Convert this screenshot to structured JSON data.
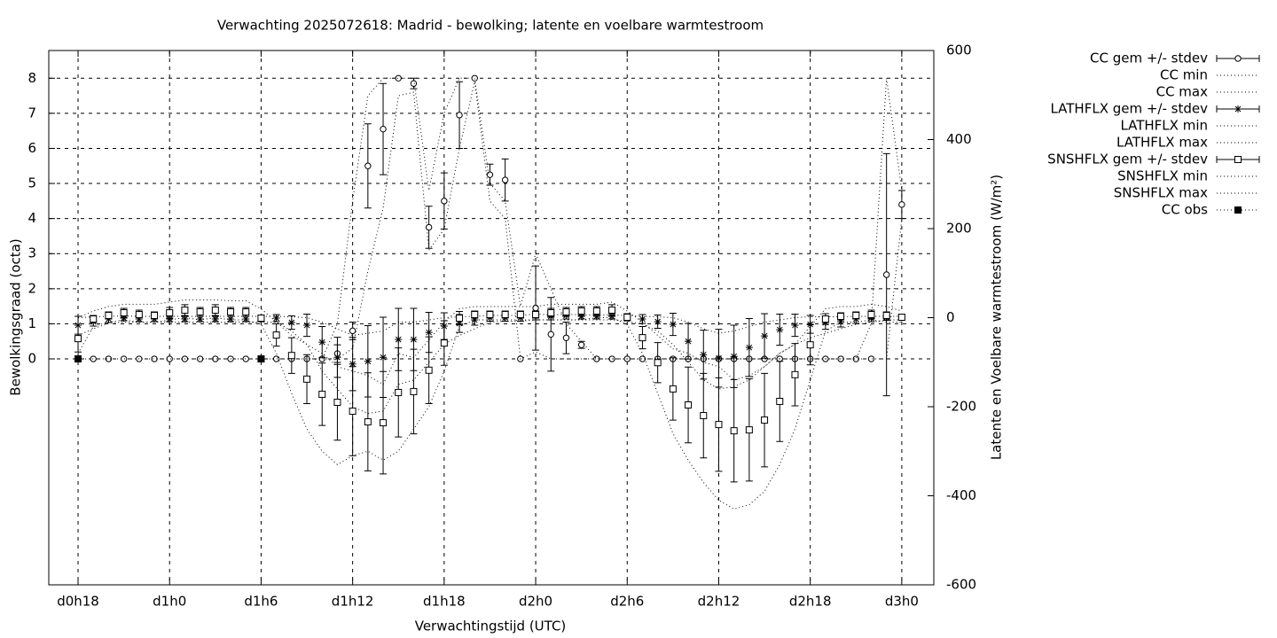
{
  "chart_data": {
    "type": "errorbar",
    "title": "Verwachting 2025072618: Madrid - bewolking; latente en voelbare warmtestroom",
    "x_label": "Verwachtingstijd (UTC)",
    "y_label": "Bewolkingsgraad (octa)",
    "y2_label": "Latente en Voelbare warmtestroom (W/m²)",
    "x": [
      18,
      19,
      20,
      21,
      22,
      23,
      24,
      25,
      26,
      27,
      28,
      29,
      30,
      31,
      32,
      33,
      34,
      35,
      36,
      37,
      38,
      39,
      40,
      41,
      42,
      43,
      44,
      45,
      46,
      47,
      48,
      49,
      50,
      51,
      52,
      53,
      54,
      55,
      56,
      57,
      58,
      59,
      60,
      61,
      62,
      63,
      64,
      65,
      66,
      67,
      68,
      69,
      70,
      71,
      72
    ],
    "xlim": [
      16.08,
      74.1
    ],
    "xticks": [
      {
        "value": 18,
        "label": "d0h18"
      },
      {
        "value": 24,
        "label": "d1h0"
      },
      {
        "value": 30,
        "label": "d1h6"
      },
      {
        "value": 36,
        "label": "d1h12"
      },
      {
        "value": 42,
        "label": "d1h18"
      },
      {
        "value": 48,
        "label": "d2h0"
      },
      {
        "value": 54,
        "label": "d2h6"
      },
      {
        "value": 60,
        "label": "d2h12"
      },
      {
        "value": 66,
        "label": "d2h18"
      },
      {
        "value": 72,
        "label": "d3h0"
      }
    ],
    "ylim": [
      -6.44,
      8.79
    ],
    "yticks": [
      0,
      1,
      2,
      3,
      4,
      5,
      6,
      7,
      8
    ],
    "y2lim": [
      -600,
      600
    ],
    "y2ticks": [
      -600,
      -400,
      -200,
      0,
      200,
      400,
      600
    ],
    "grid": true,
    "legend": "outside-top-right",
    "series": [
      {
        "name": "CC gem +/- stdev",
        "color": "#000000",
        "style": "errorbars",
        "marker": "circle",
        "values": [
          0,
          0,
          0,
          0,
          0,
          0,
          0,
          0,
          0,
          0,
          0,
          0,
          0,
          0,
          0,
          0,
          0,
          0.15,
          0.8,
          5.5,
          6.55,
          8,
          7.85,
          3.75,
          4.5,
          6.95,
          8,
          5.25,
          5.1,
          0,
          1.45,
          0.7,
          0.6,
          0.4,
          0,
          0,
          0,
          0,
          0,
          0,
          0,
          0,
          0,
          0,
          0,
          0,
          0,
          0,
          0,
          0,
          0,
          0,
          0,
          2.4,
          4.4
        ],
        "errors": [
          0,
          0,
          0,
          0,
          0,
          0,
          0,
          0,
          0,
          0,
          0,
          0,
          0,
          0,
          0,
          0,
          0,
          0.25,
          0.25,
          1.2,
          1.3,
          0,
          0.15,
          0.6,
          0.8,
          0.95,
          0,
          0.3,
          0.6,
          0,
          1.2,
          1.05,
          0.45,
          0.1,
          0,
          0,
          0,
          0,
          0,
          0,
          0,
          0,
          0,
          0,
          0,
          0,
          0,
          0,
          0,
          0,
          0,
          0,
          0,
          3.45,
          0.4
        ]
      },
      {
        "name": "CC min",
        "color": "#000000",
        "style": "dotted",
        "values": [
          0,
          0,
          0,
          0,
          0,
          0,
          0,
          0,
          0,
          0,
          0,
          0,
          0,
          0,
          0,
          0,
          0,
          0,
          0.3,
          2.5,
          4.3,
          7.5,
          7.6,
          3.1,
          3.7,
          6,
          7.9,
          4.5,
          4,
          0,
          0.2,
          0,
          0,
          0,
          0,
          0,
          0,
          0,
          0,
          0,
          0,
          0,
          0,
          0,
          0,
          0,
          0,
          0,
          0,
          0,
          0,
          0,
          0,
          0,
          4
        ]
      },
      {
        "name": "CC max",
        "color": "#000000",
        "style": "dotted",
        "values": [
          0,
          0,
          0,
          0,
          0,
          0,
          0,
          0,
          0,
          0,
          0,
          0,
          0,
          0,
          0,
          0,
          0,
          1,
          4.5,
          7.5,
          8,
          8,
          8,
          4.8,
          7,
          8,
          8,
          5,
          4.5,
          1.5,
          3,
          2,
          1,
          0.5,
          0,
          0,
          0,
          0,
          0,
          0,
          0,
          0,
          0,
          0,
          0,
          0,
          0,
          0,
          0,
          0,
          0,
          0,
          1,
          8,
          4.8
        ]
      },
      {
        "name": "LATHFLX gem +/- stdev",
        "color": "#000000",
        "style": "errorbars",
        "marker": "star",
        "axis": "y2",
        "values": [
          -17,
          -9,
          -3,
          -1,
          -3,
          -3,
          -3,
          -3,
          -3,
          -3,
          -3,
          -3,
          -3,
          -1,
          -11,
          -17,
          -55,
          -89,
          -104,
          -98,
          -89,
          -49,
          -49,
          -33,
          -19,
          -13,
          -5,
          0,
          0,
          0,
          5,
          3,
          5,
          3,
          3,
          3,
          1,
          -3,
          -9,
          -15,
          -53,
          -83,
          -91,
          -87,
          -67,
          -41,
          -27,
          -17,
          -15,
          -11,
          -9,
          -3,
          -1,
          0,
          0
        ],
        "errors": [
          20,
          10,
          8,
          6,
          6,
          6,
          6,
          6,
          6,
          6,
          6,
          6,
          6,
          8,
          15,
          25,
          35,
          45,
          60,
          80,
          90,
          70,
          70,
          45,
          30,
          20,
          12,
          8,
          8,
          8,
          10,
          8,
          8,
          6,
          6,
          6,
          6,
          10,
          15,
          25,
          40,
          55,
          65,
          70,
          65,
          50,
          35,
          25,
          20,
          15,
          12,
          10,
          8,
          6,
          5
        ]
      },
      {
        "name": "LATHFLX min",
        "color": "#000000",
        "style": "dotted",
        "axis": "y2",
        "values": [
          -40,
          -25,
          -12,
          -10,
          -10,
          -10,
          -10,
          -10,
          -10,
          -10,
          -10,
          -10,
          -10,
          -10,
          -30,
          -60,
          -120,
          -160,
          -200,
          -215,
          -210,
          -150,
          -140,
          -100,
          -60,
          -40,
          -25,
          -10,
          -8,
          -8,
          -5,
          -5,
          -5,
          -5,
          -5,
          -5,
          -8,
          -15,
          -30,
          -60,
          -100,
          -140,
          -160,
          -155,
          -140,
          -110,
          -80,
          -60,
          -45,
          -35,
          -25,
          -15,
          -10,
          -5,
          -5
        ]
      },
      {
        "name": "LATHFLX max",
        "color": "#000000",
        "style": "dotted",
        "axis": "y2",
        "values": [
          0,
          2,
          3,
          4,
          3,
          3,
          3,
          3,
          3,
          3,
          3,
          3,
          3,
          3,
          2,
          0,
          -10,
          -25,
          -40,
          -35,
          -30,
          -10,
          -10,
          -5,
          0,
          2,
          3,
          5,
          5,
          5,
          8,
          6,
          8,
          6,
          6,
          6,
          5,
          3,
          2,
          0,
          -10,
          -25,
          -35,
          -30,
          -20,
          -10,
          -5,
          0,
          2,
          2,
          2,
          3,
          3,
          3,
          3
        ]
      },
      {
        "name": "SNSHFLX gem +/- stdev",
        "color": "#000000",
        "style": "errorbars",
        "marker": "square",
        "axis": "y2",
        "values": [
          -47,
          -3,
          5,
          11,
          7,
          5,
          11,
          17,
          13,
          17,
          13,
          13,
          -1,
          -39,
          -85,
          -138,
          -172,
          -190,
          -210,
          -234,
          -236,
          -168,
          -166,
          -118,
          -57,
          -1,
          7,
          7,
          7,
          7,
          7,
          11,
          13,
          15,
          15,
          17,
          1,
          -45,
          -101,
          -160,
          -196,
          -220,
          -240,
          -254,
          -252,
          -230,
          -188,
          -128,
          -61,
          -3,
          3,
          5,
          7,
          5,
          1
        ],
        "errors": [
          30,
          8,
          8,
          10,
          10,
          8,
          12,
          12,
          10,
          12,
          10,
          10,
          6,
          25,
          40,
          55,
          70,
          85,
          100,
          110,
          115,
          100,
          95,
          75,
          50,
          15,
          8,
          8,
          8,
          8,
          8,
          10,
          10,
          10,
          10,
          12,
          8,
          25,
          45,
          70,
          85,
          95,
          105,
          115,
          115,
          105,
          90,
          70,
          45,
          12,
          8,
          8,
          10,
          8,
          6
        ]
      },
      {
        "name": "SNSHFLX min",
        "color": "#000000",
        "style": "dotted",
        "axis": "y2",
        "values": [
          -80,
          -20,
          -10,
          -5,
          -10,
          -10,
          -5,
          0,
          -5,
          0,
          -5,
          -5,
          -15,
          -80,
          -170,
          -250,
          -300,
          -330,
          -310,
          -300,
          -320,
          -300,
          -250,
          -200,
          -120,
          -20,
          -5,
          -5,
          -5,
          -5,
          -5,
          -5,
          -5,
          -5,
          0,
          0,
          -15,
          -80,
          -170,
          -260,
          -320,
          -370,
          -410,
          -430,
          -420,
          -390,
          -330,
          -250,
          -140,
          -30,
          -10,
          -10,
          -5,
          -10,
          -10
        ]
      },
      {
        "name": "SNSHFLX max",
        "color": "#000000",
        "style": "dotted",
        "axis": "y2",
        "values": [
          0,
          15,
          25,
          30,
          30,
          30,
          35,
          40,
          40,
          40,
          38,
          38,
          20,
          -10,
          -40,
          -60,
          -80,
          -110,
          -120,
          -130,
          -150,
          -80,
          -90,
          -50,
          -10,
          20,
          25,
          25,
          25,
          25,
          25,
          30,
          30,
          30,
          30,
          35,
          15,
          -10,
          -40,
          -70,
          -80,
          -100,
          -110,
          -140,
          -130,
          -110,
          -80,
          -60,
          -20,
          20,
          25,
          25,
          30,
          25,
          15
        ]
      },
      {
        "name": "CC obs",
        "color": "#000000",
        "style": "points-dotted",
        "marker": "filled-square",
        "values": [
          0,
          null,
          null,
          null,
          null,
          null,
          null,
          null,
          null,
          null,
          null,
          null,
          0,
          null,
          null,
          null,
          null,
          null,
          null,
          null,
          null,
          null,
          null,
          null,
          null,
          null,
          null,
          null,
          null,
          null,
          null,
          null,
          null,
          null,
          null,
          null,
          null,
          null,
          null,
          null,
          null,
          null,
          null,
          null,
          null,
          null,
          null,
          null,
          null,
          null,
          null,
          null,
          null,
          null,
          null
        ]
      }
    ]
  }
}
